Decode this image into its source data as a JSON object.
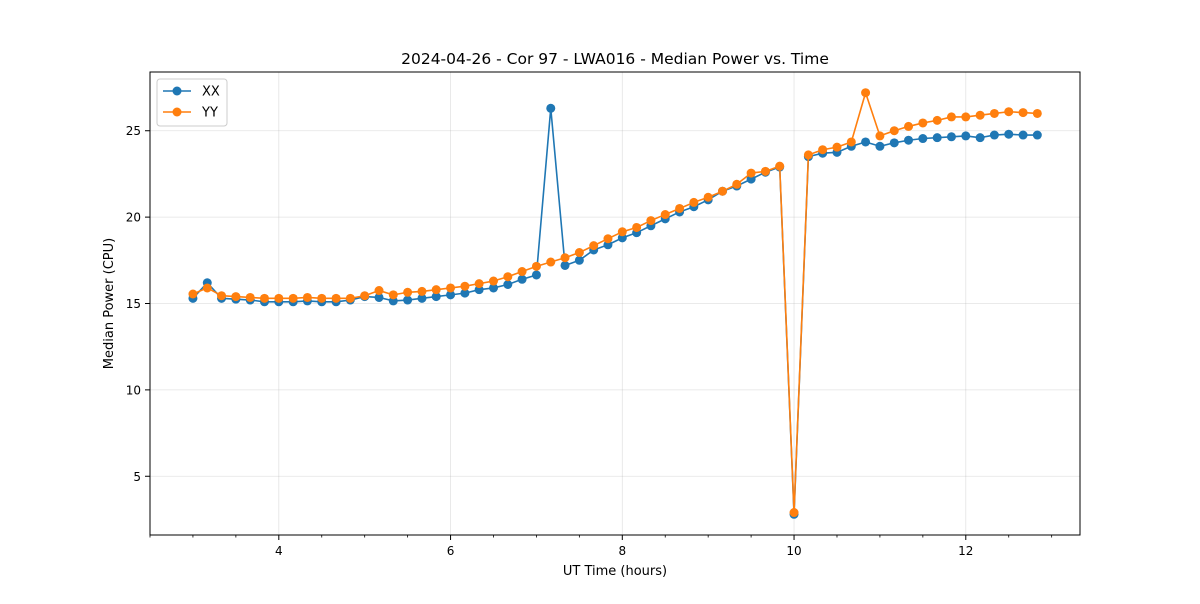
{
  "chart_data": {
    "type": "line",
    "title": "2024-04-26 - Cor 97 - LWA016 - Median Power vs. Time",
    "xlabel": "UT Time (hours)",
    "ylabel": "Median Power (CPU)",
    "xlim": [
      2.5,
      13.33
    ],
    "ylim": [
      1.6,
      28.4
    ],
    "xticks": [
      4,
      6,
      8,
      10,
      12
    ],
    "xtick_labels": [
      "4",
      "6",
      "8",
      "10",
      "12"
    ],
    "yticks": [
      5,
      10,
      15,
      20,
      25
    ],
    "ytick_labels": [
      "5",
      "10",
      "15",
      "20",
      "25"
    ],
    "grid": true,
    "legend_position": "top-left",
    "x": [
      3.0,
      3.167,
      3.333,
      3.5,
      3.667,
      3.833,
      4.0,
      4.167,
      4.333,
      4.5,
      4.667,
      4.833,
      5.0,
      5.167,
      5.333,
      5.5,
      5.667,
      5.833,
      6.0,
      6.167,
      6.333,
      6.5,
      6.667,
      6.833,
      7.0,
      7.167,
      7.333,
      7.5,
      7.667,
      7.833,
      8.0,
      8.167,
      8.333,
      8.5,
      8.667,
      8.833,
      9.0,
      9.167,
      9.333,
      9.5,
      9.667,
      9.833,
      10.0,
      10.167,
      10.333,
      10.5,
      10.667,
      10.833,
      11.0,
      11.167,
      11.333,
      11.5,
      11.667,
      11.833,
      12.0,
      12.167,
      12.333,
      12.5,
      12.667,
      12.833
    ],
    "series": [
      {
        "name": "XX",
        "color": "#1f77b4",
        "values": [
          15.3,
          16.2,
          15.3,
          15.25,
          15.2,
          15.1,
          15.1,
          15.1,
          15.15,
          15.1,
          15.1,
          15.2,
          15.4,
          15.35,
          15.15,
          15.2,
          15.3,
          15.4,
          15.5,
          15.6,
          15.8,
          15.9,
          16.1,
          16.4,
          16.65,
          26.3,
          17.2,
          17.5,
          18.1,
          18.4,
          18.8,
          19.1,
          19.5,
          19.9,
          20.3,
          20.6,
          21.0,
          21.5,
          21.8,
          22.2,
          22.6,
          22.9,
          2.8,
          23.5,
          23.7,
          23.75,
          24.1,
          24.35,
          24.1,
          24.3,
          24.45,
          24.55,
          24.6,
          24.65,
          24.7,
          24.6,
          24.75,
          24.8,
          24.75,
          24.75
        ]
      },
      {
        "name": "YY",
        "color": "#ff7f0e",
        "values": [
          15.55,
          15.9,
          15.45,
          15.4,
          15.35,
          15.3,
          15.3,
          15.3,
          15.35,
          15.3,
          15.3,
          15.3,
          15.45,
          15.75,
          15.5,
          15.65,
          15.7,
          15.8,
          15.9,
          16.0,
          16.15,
          16.3,
          16.55,
          16.85,
          17.15,
          17.4,
          17.65,
          17.95,
          18.35,
          18.75,
          19.15,
          19.4,
          19.8,
          20.15,
          20.5,
          20.85,
          21.15,
          21.5,
          21.9,
          22.55,
          22.65,
          22.95,
          2.9,
          23.6,
          23.9,
          24.05,
          24.35,
          27.2,
          24.7,
          25.0,
          25.25,
          25.45,
          25.6,
          25.8,
          25.8,
          25.9,
          26.0,
          26.1,
          26.05,
          26.0
        ]
      }
    ]
  }
}
